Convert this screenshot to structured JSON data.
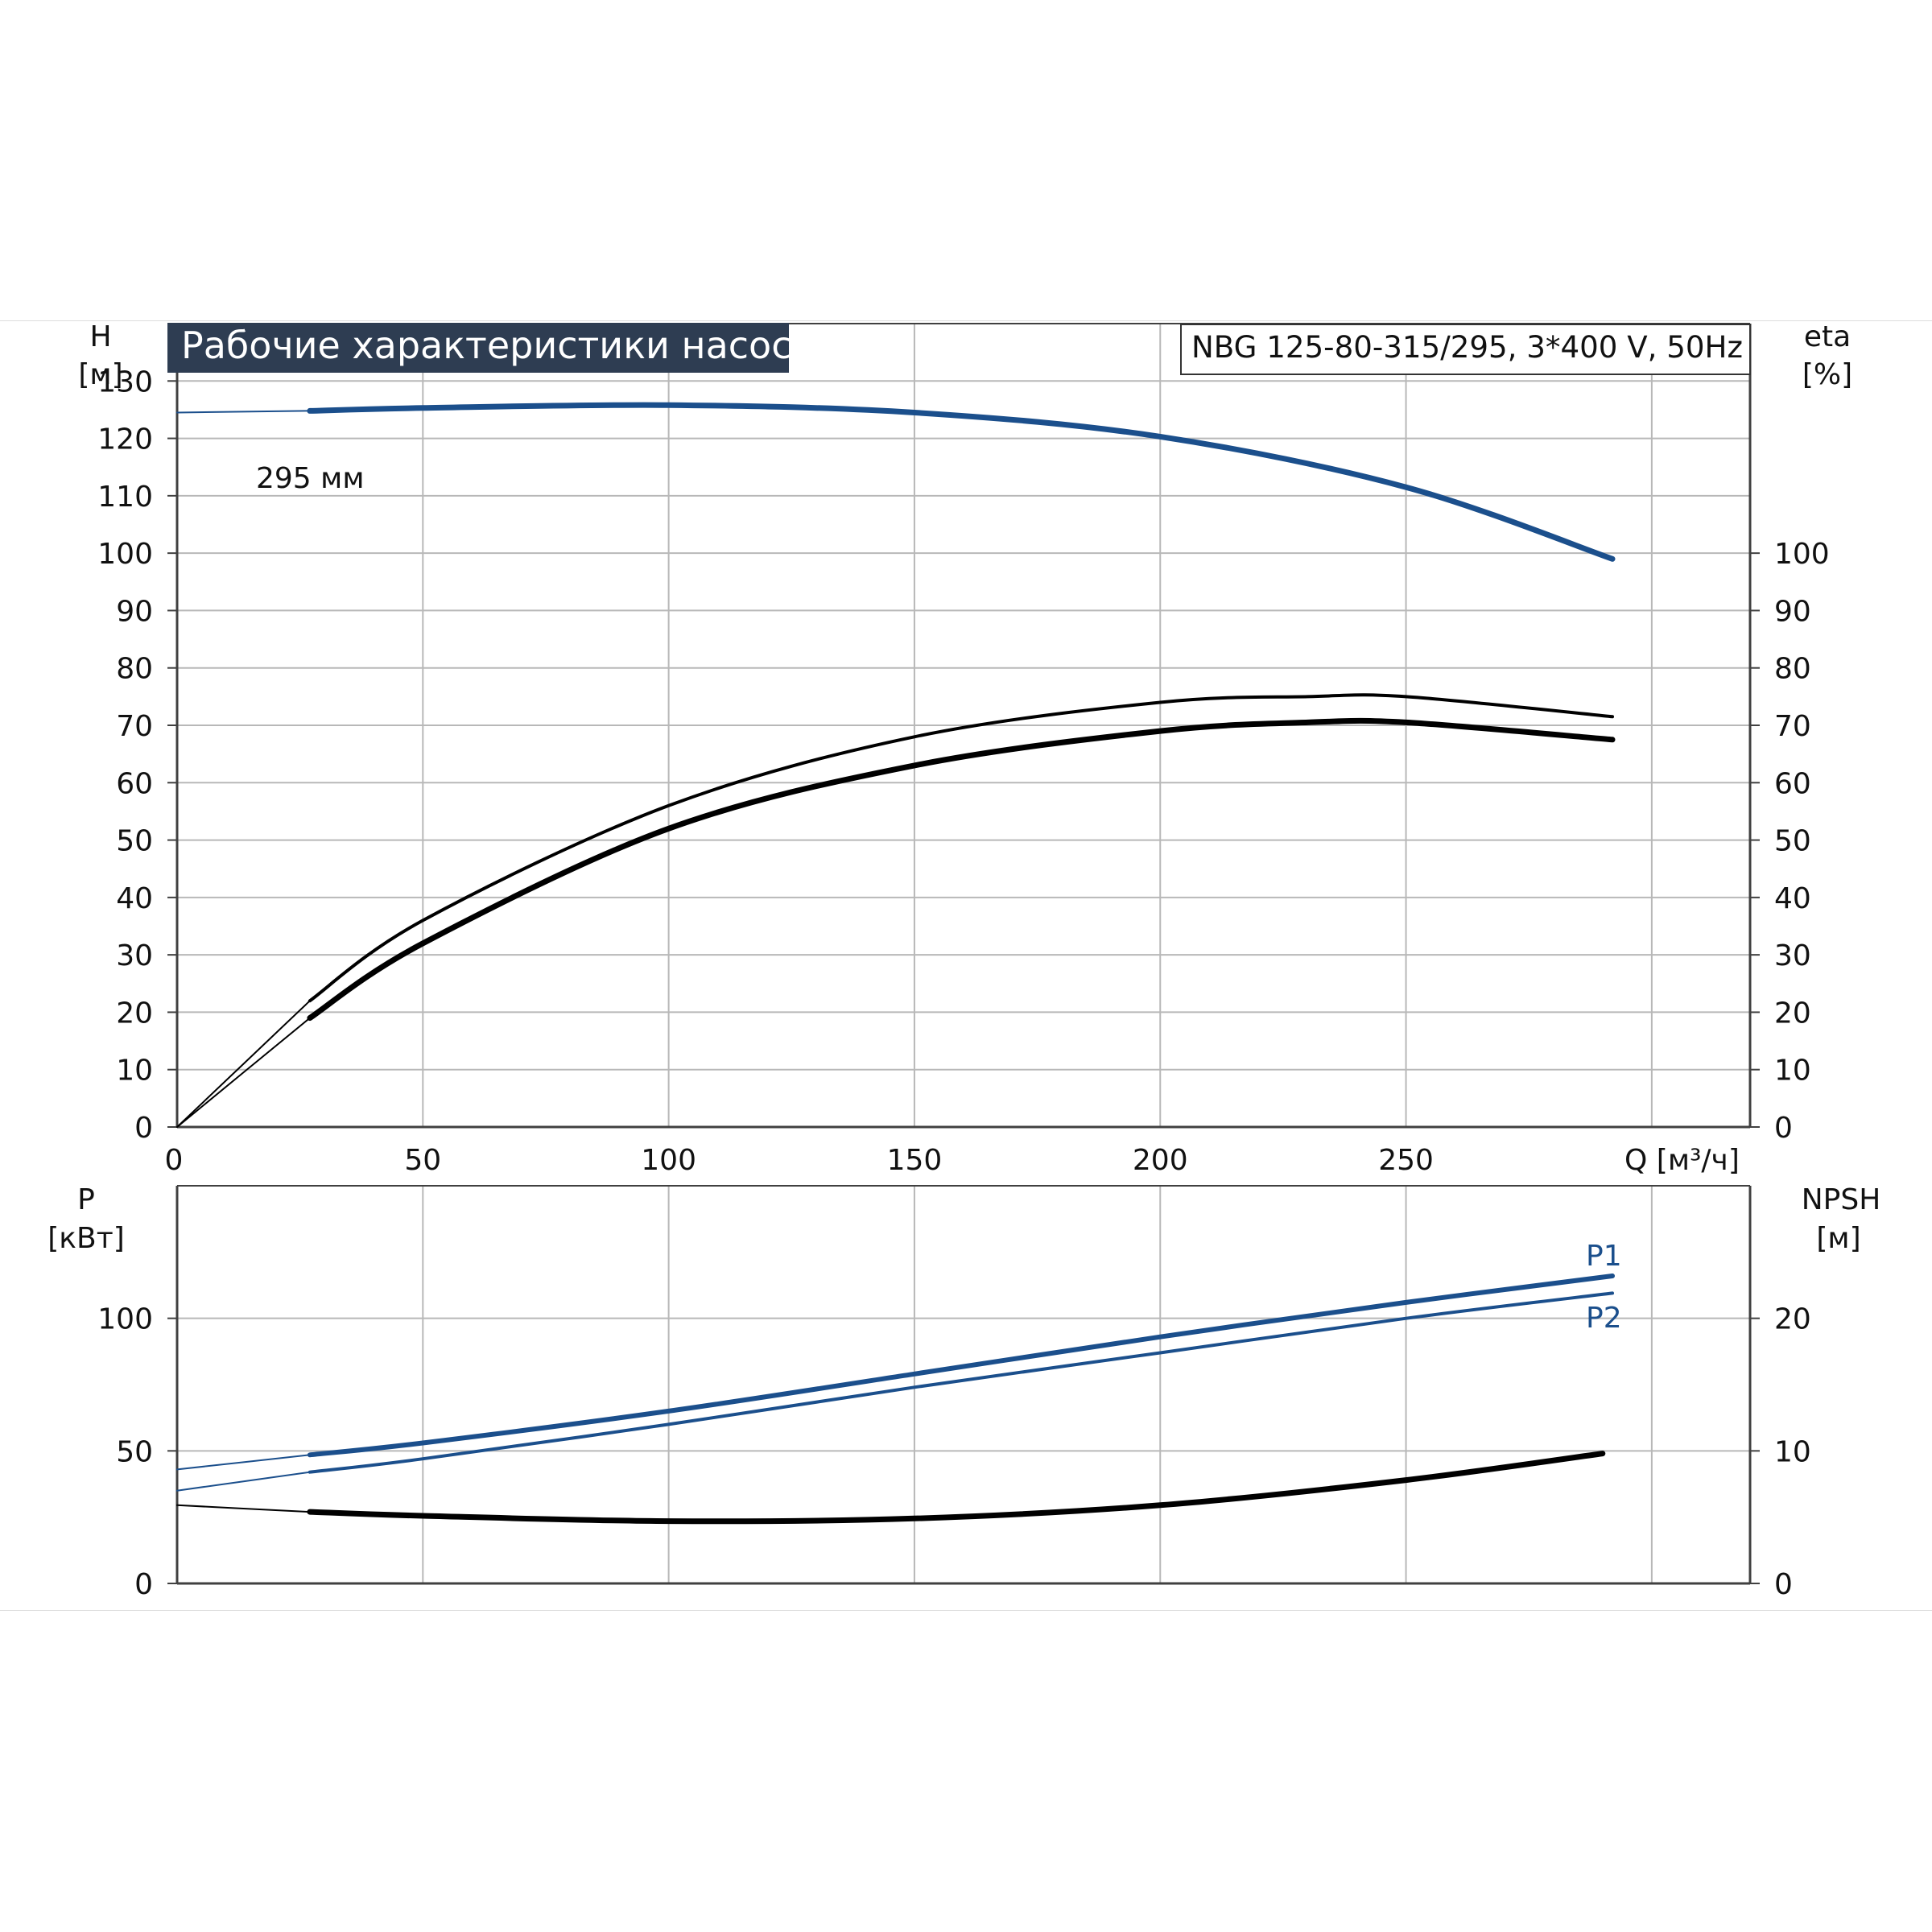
{
  "title": "Рабочие характеристики насоса",
  "model_label": "NBG 125-80-315/295, 3*400 V, 50Hz",
  "colors": {
    "title_bg": "#2e3d52",
    "blue": "#1b4f8c",
    "black": "#000000",
    "grid": "#b8b8b8",
    "axis": "#404040"
  },
  "chart_data": [
    {
      "type": "line",
      "panel": "head-efficiency",
      "x_axis": {
        "label": "Q [м³/ч]",
        "range": [
          0,
          320
        ],
        "ticks": [
          0,
          50,
          100,
          150,
          200,
          250
        ]
      },
      "y_left": {
        "label_top": "H",
        "label_unit": "[м]",
        "range": [
          0,
          140
        ],
        "ticks": [
          0,
          10,
          20,
          30,
          40,
          50,
          60,
          70,
          80,
          90,
          100,
          110,
          120,
          130
        ]
      },
      "y_right": {
        "label_top": "eta",
        "label_unit": "[%]",
        "range": [
          0,
          140
        ],
        "ticks": [
          0,
          10,
          20,
          30,
          40,
          50,
          60,
          70,
          80,
          90,
          100
        ]
      },
      "grid": true,
      "annotations": [
        "295 мм"
      ],
      "series": [
        {
          "role": "head",
          "axis": "left",
          "color": "blue",
          "x": [
            0,
            27,
            50,
            100,
            150,
            200,
            250,
            292
          ],
          "y": [
            124.5,
            124.8,
            125.3,
            125.8,
            124.5,
            120.3,
            111.5,
            99.0
          ]
        },
        {
          "role": "eta-1",
          "axis": "right",
          "color": "black",
          "x": [
            0,
            27,
            50,
            100,
            150,
            200,
            230,
            250,
            292
          ],
          "y": [
            0,
            22,
            36,
            56,
            68,
            74,
            75,
            75,
            71.5
          ]
        },
        {
          "role": "eta-2",
          "axis": "right",
          "color": "black",
          "x": [
            0,
            27,
            50,
            100,
            150,
            200,
            230,
            250,
            292
          ],
          "y": [
            0,
            19,
            32,
            52,
            63,
            69,
            70.5,
            70.5,
            67.5
          ]
        }
      ]
    },
    {
      "type": "line",
      "panel": "power-npsh",
      "x_axis": {
        "range": [
          0,
          320
        ],
        "ticks": [
          0,
          50,
          100,
          150,
          200,
          250
        ]
      },
      "y_left": {
        "label_top": "P",
        "label_unit": "[кВт]",
        "range": [
          0,
          150
        ],
        "ticks": [
          0,
          50,
          100
        ]
      },
      "y_right": {
        "label_top": "NPSH",
        "label_unit": "[м]",
        "range": [
          0,
          30
        ],
        "ticks": [
          0,
          10,
          20
        ]
      },
      "grid": true,
      "series": [
        {
          "name": "P1",
          "axis": "left",
          "color": "blue",
          "x": [
            0,
            27,
            50,
            100,
            150,
            200,
            250,
            292
          ],
          "y": [
            43,
            48.5,
            53,
            65,
            79,
            93,
            106,
            116
          ]
        },
        {
          "name": "P2",
          "axis": "left",
          "color": "blue",
          "x": [
            0,
            27,
            50,
            100,
            150,
            200,
            250,
            292
          ],
          "y": [
            35,
            42,
            47,
            60,
            74,
            87,
            100,
            109.5
          ]
        },
        {
          "role": "npsh",
          "axis": "right",
          "color": "black",
          "x": [
            0,
            27,
            50,
            100,
            150,
            200,
            250,
            290
          ],
          "y": [
            5.9,
            5.4,
            5.1,
            4.7,
            4.9,
            5.9,
            7.8,
            9.8
          ]
        }
      ]
    }
  ]
}
